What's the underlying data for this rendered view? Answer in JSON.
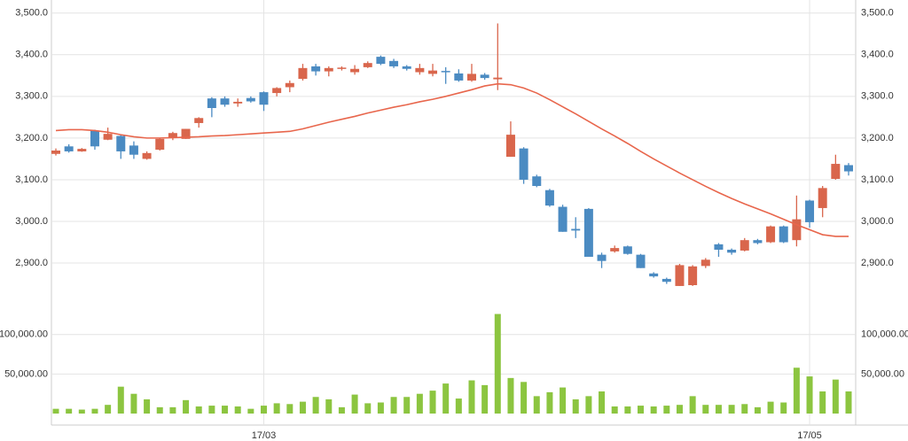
{
  "chart_data": {
    "type": "candlestick",
    "categories": [
      null,
      null,
      null,
      null,
      null,
      null,
      null,
      null,
      null,
      null,
      null,
      null,
      null,
      null,
      null,
      null,
      "17/03",
      null,
      null,
      null,
      null,
      null,
      null,
      null,
      null,
      null,
      null,
      null,
      null,
      null,
      null,
      null,
      null,
      null,
      null,
      null,
      null,
      null,
      null,
      null,
      null,
      null,
      null,
      null,
      null,
      null,
      null,
      null,
      null,
      null,
      null,
      null,
      null,
      null,
      null,
      null,
      null,
      null,
      "17/05",
      null,
      null,
      null
    ],
    "open": [
      3162,
      3180,
      3168,
      3218,
      3196,
      3205,
      3182,
      3150,
      3172,
      3200,
      3198,
      3236,
      3295,
      3295,
      3283,
      3296,
      3310,
      3308,
      3322,
      3342,
      3372,
      3360,
      3366,
      3358,
      3370,
      3395,
      3385,
      3372,
      3358,
      3354,
      3361,
      3355,
      3338,
      3352,
      3341,
      3155,
      3175,
      3108,
      3075,
      3035,
      2982,
      3030,
      2920,
      2928,
      2940,
      2920,
      2875,
      2862,
      2845,
      2847,
      2893,
      2945,
      2932,
      2930,
      2955,
      2950,
      2988,
      2955,
      3050,
      3032,
      3102,
      3135
    ],
    "high": [
      3175,
      3185,
      3176,
      3220,
      3225,
      3208,
      3192,
      3168,
      3200,
      3215,
      3222,
      3250,
      3298,
      3300,
      3295,
      3300,
      3312,
      3322,
      3338,
      3378,
      3378,
      3372,
      3372,
      3375,
      3384,
      3398,
      3390,
      3375,
      3378,
      3378,
      3370,
      3365,
      3378,
      3356,
      3475,
      3240,
      3178,
      3112,
      3078,
      3040,
      3010,
      3032,
      2925,
      2942,
      2942,
      2922,
      2878,
      2865,
      2898,
      2895,
      2912,
      2948,
      2935,
      2960,
      2958,
      2990,
      2990,
      3062,
      3052,
      3085,
      3160,
      3140
    ],
    "low": [
      3158,
      3165,
      3167,
      3172,
      3195,
      3150,
      3150,
      3148,
      3170,
      3195,
      3198,
      3225,
      3250,
      3275,
      3275,
      3285,
      3265,
      3300,
      3310,
      3338,
      3350,
      3348,
      3362,
      3352,
      3368,
      3375,
      3368,
      3362,
      3352,
      3348,
      3330,
      3335,
      3335,
      3340,
      3315,
      3155,
      3090,
      3082,
      3035,
      2975,
      2960,
      2915,
      2888,
      2925,
      2920,
      2888,
      2865,
      2850,
      2845,
      2845,
      2888,
      2915,
      2920,
      2928,
      2945,
      2948,
      2948,
      2940,
      2985,
      3010,
      3100,
      3110
    ],
    "close": [
      3170,
      3168,
      3174,
      3180,
      3210,
      3168,
      3160,
      3164,
      3198,
      3212,
      3222,
      3248,
      3272,
      3280,
      3287,
      3288,
      3280,
      3320,
      3332,
      3368,
      3360,
      3368,
      3369,
      3366,
      3380,
      3378,
      3372,
      3366,
      3368,
      3362,
      3358,
      3338,
      3354,
      3344,
      3345,
      3208,
      3100,
      3085,
      3038,
      2975,
      2978,
      2915,
      2905,
      2936,
      2922,
      2888,
      2868,
      2855,
      2895,
      2892,
      2908,
      2932,
      2925,
      2955,
      2948,
      2988,
      2950,
      3005,
      2998,
      3080,
      3138,
      3120
    ],
    "ma": [
      3218,
      3220,
      3220,
      3218,
      3214,
      3208,
      3203,
      3200,
      3200,
      3201,
      3202,
      3203,
      3205,
      3206,
      3208,
      3210,
      3212,
      3214,
      3216,
      3222,
      3230,
      3238,
      3245,
      3252,
      3260,
      3267,
      3274,
      3280,
      3287,
      3293,
      3300,
      3308,
      3316,
      3325,
      3330,
      3328,
      3320,
      3308,
      3292,
      3275,
      3258,
      3240,
      3222,
      3205,
      3187,
      3168,
      3150,
      3133,
      3116,
      3100,
      3084,
      3069,
      3055,
      3042,
      3030,
      3018,
      3005,
      2992,
      2980,
      2968,
      2964,
      2964
    ],
    "volume": [
      6000,
      6000,
      5000,
      6000,
      11000,
      34000,
      25000,
      18000,
      8000,
      8000,
      17000,
      9000,
      10000,
      10000,
      9000,
      6000,
      10000,
      13000,
      12000,
      15000,
      21000,
      18000,
      8000,
      24000,
      13000,
      14000,
      21000,
      21000,
      25000,
      29000,
      38000,
      19000,
      42000,
      36000,
      126000,
      45000,
      40000,
      22000,
      27000,
      33000,
      18000,
      22000,
      28000,
      9000,
      9000,
      10000,
      9000,
      10000,
      11000,
      22000,
      11000,
      11000,
      11000,
      12000,
      8000,
      15000,
      14000,
      58000,
      47000,
      28000,
      43000,
      28000
    ],
    "up_color": "#d9664c",
    "down_color": "#4b8bc2",
    "ma_color": "#e8664c",
    "volume_color": "#8cc540",
    "ylim": [
      2830,
      3510
    ],
    "yticks": [
      {
        "value": 2900,
        "label": "2,900.0"
      },
      {
        "value": 3000,
        "label": "3,000.0"
      },
      {
        "value": 3100,
        "label": "3,100.0"
      },
      {
        "value": 3200,
        "label": "3,200.0"
      },
      {
        "value": 3300,
        "label": "3,300.0"
      },
      {
        "value": 3400,
        "label": "3,400.0"
      },
      {
        "value": 3500,
        "label": "3,500.0"
      }
    ],
    "volume_ylim": [
      0,
      130000
    ],
    "volume_ticks": [
      {
        "value": 50000,
        "label": "50,000.00"
      },
      {
        "value": 100000,
        "label": "100,000.00"
      }
    ],
    "grid": true
  }
}
